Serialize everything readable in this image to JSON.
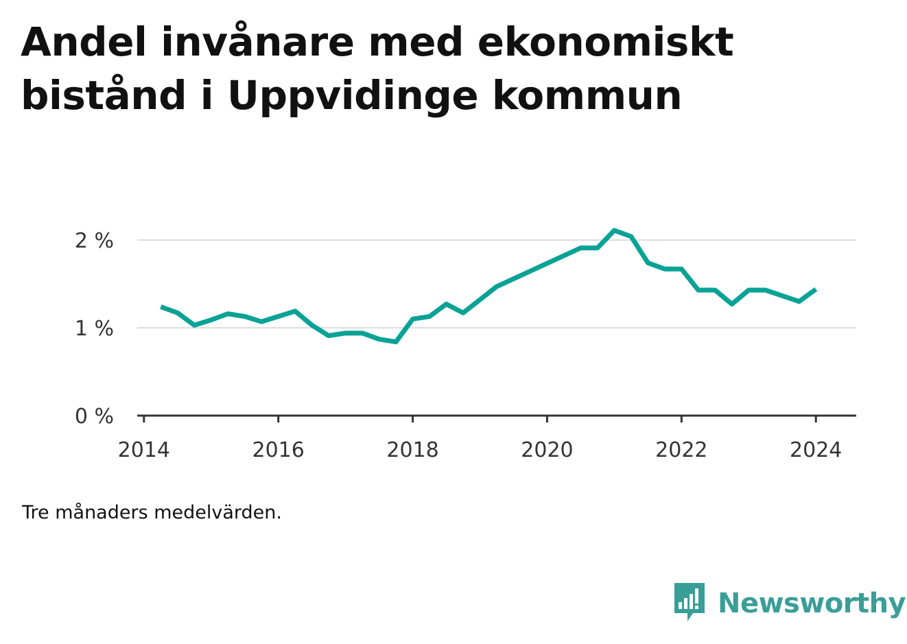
{
  "title": "Andel invånare med ekonomiskt bistånd i Uppvidinge kommun",
  "footnote": "Tre månaders medelvärden.",
  "brand": {
    "name": "Newsworthy",
    "logo_icon": "bar-chart-speech-bubble-icon"
  },
  "colors": {
    "line": "#0aa296",
    "grid": "#dddddd",
    "axis": "#333333",
    "brand": "#3a9e98"
  },
  "chart_data": {
    "type": "line",
    "title": "Andel invånare med ekonomiskt bistånd i Uppvidinge kommun",
    "xlabel": "",
    "ylabel": "",
    "xlim": [
      2013.9,
      2024.6
    ],
    "ylim": [
      0,
      2
    ],
    "grid": true,
    "x_ticks": [
      2014,
      2016,
      2018,
      2020,
      2022,
      2024
    ],
    "y_ticks": [
      0,
      1,
      2
    ],
    "y_tick_labels": [
      "0 %",
      "1 %",
      "2 %"
    ],
    "series": [
      {
        "values": [
          {
            "x": "2014-04",
            "y": 1.24
          },
          {
            "x": "2014-07",
            "y": 1.17
          },
          {
            "x": "2014-10",
            "y": 1.03
          },
          {
            "x": "2015-01",
            "y": 1.09
          },
          {
            "x": "2015-04",
            "y": 1.16
          },
          {
            "x": "2015-07",
            "y": 1.13
          },
          {
            "x": "2015-10",
            "y": 1.07
          },
          {
            "x": "2016-01",
            "y": 1.13
          },
          {
            "x": "2016-04",
            "y": 1.19
          },
          {
            "x": "2016-07",
            "y": 1.03
          },
          {
            "x": "2016-10",
            "y": 0.91
          },
          {
            "x": "2017-01",
            "y": 0.94
          },
          {
            "x": "2017-04",
            "y": 0.94
          },
          {
            "x": "2017-07",
            "y": 0.87
          },
          {
            "x": "2017-10",
            "y": 0.84
          },
          {
            "x": "2018-01",
            "y": 1.1
          },
          {
            "x": "2018-04",
            "y": 1.13
          },
          {
            "x": "2018-07",
            "y": 1.27
          },
          {
            "x": "2018-10",
            "y": 1.17
          },
          {
            "x": "2019-04",
            "y": 1.47
          },
          {
            "x": "2020-07",
            "y": 1.91
          },
          {
            "x": "2020-10",
            "y": 1.91
          },
          {
            "x": "2021-01",
            "y": 2.11
          },
          {
            "x": "2021-04",
            "y": 2.04
          },
          {
            "x": "2021-07",
            "y": 1.74
          },
          {
            "x": "2021-10",
            "y": 1.67
          },
          {
            "x": "2022-01",
            "y": 1.67
          },
          {
            "x": "2022-04",
            "y": 1.43
          },
          {
            "x": "2022-07",
            "y": 1.43
          },
          {
            "x": "2022-10",
            "y": 1.27
          },
          {
            "x": "2023-01",
            "y": 1.43
          },
          {
            "x": "2023-04",
            "y": 1.43
          },
          {
            "x": "2023-10",
            "y": 1.3
          },
          {
            "x": "2024-01",
            "y": 1.44
          }
        ]
      }
    ]
  }
}
